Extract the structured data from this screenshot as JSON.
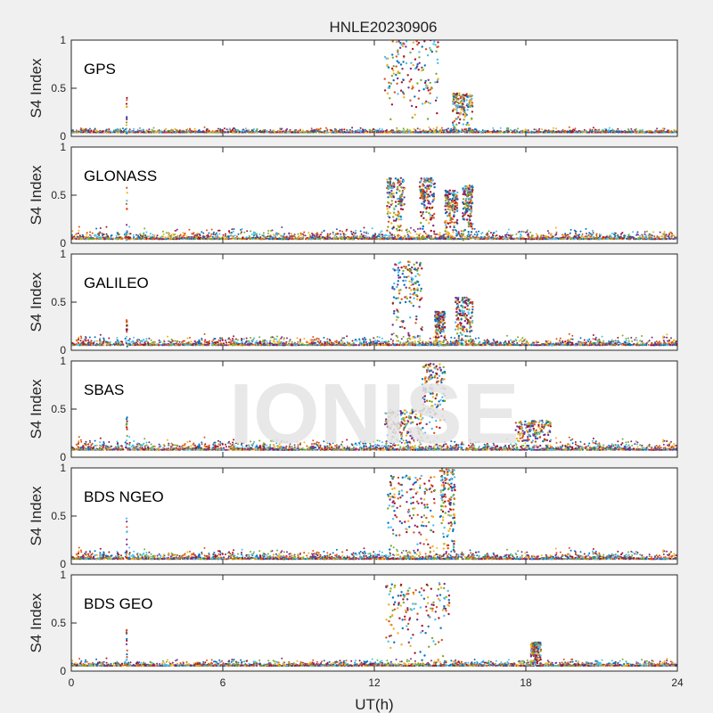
{
  "figure_title": "HNLE20230906",
  "watermark": "IONISE",
  "colors": {
    "figure_background": "#f0f0f0",
    "axes_background": "#ffffff",
    "watermark": "#e4e4e4",
    "series_palette": [
      "#0072BD",
      "#D95319",
      "#EDB120",
      "#7E2F8E",
      "#77AC30",
      "#4DBEEE",
      "#A2142F"
    ]
  },
  "chart_data": [
    {
      "type": "scatter",
      "panel_label": "GPS",
      "ylabel": "S4 Index",
      "xlabel": "",
      "xlim": [
        0,
        24
      ],
      "ylim": [
        0,
        1
      ],
      "xticks": [
        0,
        6,
        12,
        18,
        24
      ],
      "yticks": [
        0,
        0.5,
        1
      ],
      "ytick_labels": [
        "0",
        "0.5",
        "1"
      ],
      "grid": false,
      "background_level": [
        0.03,
        0.1
      ],
      "spike_at_x": 2.2,
      "spike_max": 0.4,
      "scintillation_events": [
        {
          "x_start": 12.4,
          "x_end": 14.6,
          "max": 1.0
        },
        {
          "x_start": 15.1,
          "x_end": 15.9,
          "max": 0.45
        }
      ]
    },
    {
      "type": "scatter",
      "panel_label": "GLONASS",
      "ylabel": "S4 Index",
      "xlabel": "",
      "xlim": [
        0,
        24
      ],
      "ylim": [
        0,
        1
      ],
      "xticks": [
        0,
        6,
        12,
        18,
        24
      ],
      "yticks": [
        0,
        0.5,
        1
      ],
      "ytick_labels": [
        "0",
        "0.5",
        "1"
      ],
      "grid": false,
      "background_level": [
        0.02,
        0.18
      ],
      "spike_at_x": 2.2,
      "spike_max": 0.6,
      "scintillation_events": [
        {
          "x_start": 12.5,
          "x_end": 13.2,
          "max": 0.68
        },
        {
          "x_start": 13.8,
          "x_end": 14.4,
          "max": 0.68
        },
        {
          "x_start": 14.8,
          "x_end": 15.3,
          "max": 0.55
        },
        {
          "x_start": 15.5,
          "x_end": 15.9,
          "max": 0.6
        }
      ]
    },
    {
      "type": "scatter",
      "panel_label": "GALILEO",
      "ylabel": "S4 Index",
      "xlabel": "",
      "xlim": [
        0,
        24
      ],
      "ylim": [
        0,
        1
      ],
      "xticks": [
        0,
        6,
        12,
        18,
        24
      ],
      "yticks": [
        0,
        0.5,
        1
      ],
      "ytick_labels": [
        "0",
        "0.5",
        "1"
      ],
      "grid": false,
      "background_level": [
        0.03,
        0.18
      ],
      "spike_at_x": 2.2,
      "spike_max": 0.36,
      "scintillation_events": [
        {
          "x_start": 12.7,
          "x_end": 13.9,
          "max": 0.92
        },
        {
          "x_start": 14.4,
          "x_end": 14.8,
          "max": 0.4
        },
        {
          "x_start": 15.2,
          "x_end": 15.9,
          "max": 0.55
        }
      ]
    },
    {
      "type": "scatter",
      "panel_label": "SBAS",
      "ylabel": "S4 Index",
      "xlabel": "",
      "xlim": [
        0,
        24
      ],
      "ylim": [
        0,
        1
      ],
      "xticks": [
        0,
        6,
        12,
        18,
        24
      ],
      "yticks": [
        0,
        0.5,
        1
      ],
      "ytick_labels": [
        "0",
        "0.5",
        "1"
      ],
      "grid": false,
      "background_level": [
        0.05,
        0.22
      ],
      "spike_at_x": 2.2,
      "spike_max": 0.42,
      "scintillation_events": [
        {
          "x_start": 12.4,
          "x_end": 13.9,
          "max": 0.5
        },
        {
          "x_start": 13.9,
          "x_end": 14.8,
          "max": 0.97
        },
        {
          "x_start": 17.6,
          "x_end": 19.0,
          "max": 0.38
        }
      ]
    },
    {
      "type": "scatter",
      "panel_label": "BDS NGEO",
      "ylabel": "S4 Index",
      "xlabel": "",
      "xlim": [
        0,
        24
      ],
      "ylim": [
        0,
        1
      ],
      "xticks": [
        0,
        6,
        12,
        18,
        24
      ],
      "yticks": [
        0,
        0.5,
        1
      ],
      "ytick_labels": [
        "0",
        "0.5",
        "1"
      ],
      "grid": false,
      "background_level": [
        0.03,
        0.18
      ],
      "spike_at_x": 2.2,
      "spike_max": 0.48,
      "scintillation_events": [
        {
          "x_start": 12.5,
          "x_end": 14.4,
          "max": 0.92
        },
        {
          "x_start": 14.6,
          "x_end": 15.2,
          "max": 1.0
        }
      ]
    },
    {
      "type": "scatter",
      "panel_label": "BDS GEO",
      "ylabel": "S4 Index",
      "xlabel": "UT(h)",
      "xlim": [
        0,
        24
      ],
      "ylim": [
        0,
        1
      ],
      "xticks": [
        0,
        6,
        12,
        18,
        24
      ],
      "yticks": [
        0,
        0.5,
        1
      ],
      "ytick_labels": [
        "0",
        "0.5",
        "1"
      ],
      "grid": false,
      "background_level": [
        0.04,
        0.14
      ],
      "spike_at_x": 2.2,
      "spike_max": 0.45,
      "scintillation_events": [
        {
          "x_start": 12.4,
          "x_end": 15.0,
          "max": 0.92
        },
        {
          "x_start": 18.2,
          "x_end": 18.6,
          "max": 0.3
        }
      ]
    }
  ]
}
